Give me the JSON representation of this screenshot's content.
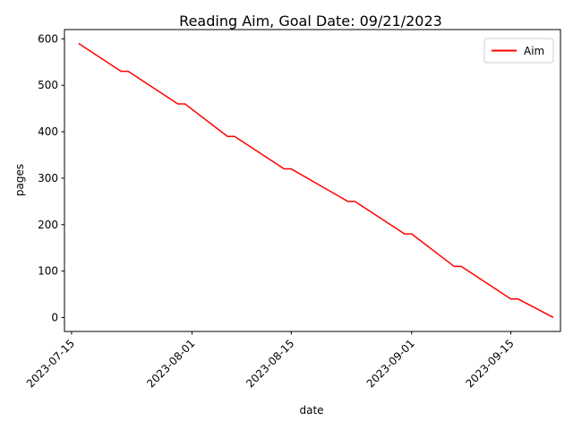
{
  "chart_data": {
    "type": "line",
    "title": "Reading Aim, Goal Date: 09/21/2023",
    "xlabel": "date",
    "ylabel": "pages",
    "x_ticks": [
      "2023-07-15",
      "2023-08-01",
      "2023-08-15",
      "2023-09-01",
      "2023-09-15"
    ],
    "y_ticks": [
      0,
      100,
      200,
      300,
      400,
      500,
      600
    ],
    "xlim": [
      "2023-07-14",
      "2023-09-22"
    ],
    "ylim": [
      -30,
      620
    ],
    "grid": false,
    "legend_position": "top-right",
    "series": [
      {
        "name": "Aim",
        "color": "#ff0000",
        "points": [
          {
            "x": "2023-07-16",
            "y": 590
          },
          {
            "x": "2023-07-22",
            "y": 530
          },
          {
            "x": "2023-07-23",
            "y": 530
          },
          {
            "x": "2023-07-30",
            "y": 460
          },
          {
            "x": "2023-07-31",
            "y": 460
          },
          {
            "x": "2023-08-06",
            "y": 390
          },
          {
            "x": "2023-08-07",
            "y": 390
          },
          {
            "x": "2023-08-14",
            "y": 320
          },
          {
            "x": "2023-08-15",
            "y": 320
          },
          {
            "x": "2023-08-23",
            "y": 250
          },
          {
            "x": "2023-08-24",
            "y": 250
          },
          {
            "x": "2023-08-31",
            "y": 180
          },
          {
            "x": "2023-09-01",
            "y": 180
          },
          {
            "x": "2023-09-07",
            "y": 110
          },
          {
            "x": "2023-09-08",
            "y": 110
          },
          {
            "x": "2023-09-15",
            "y": 40
          },
          {
            "x": "2023-09-16",
            "y": 40
          },
          {
            "x": "2023-09-21",
            "y": 0
          }
        ]
      }
    ]
  }
}
